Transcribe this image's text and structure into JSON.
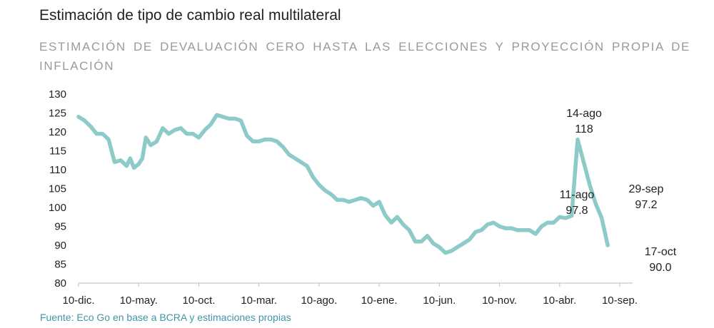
{
  "header": {
    "title": "Estimación de tipo de cambio real multilateral",
    "subtitle": "ESTIMACIÓN DE DEVALUACIÓN CERO HASTA LAS ELECCIONES Y PROYECCIÓN PROPIA DE INFLACIÓN"
  },
  "footer": {
    "source": "Fuente: Eco Go en base a BCRA y estimaciones propias"
  },
  "chart_data": {
    "type": "line",
    "title": "Estimación de tipo de cambio real multilateral",
    "subtitle": "ESTIMACIÓN DE DEVALUACIÓN CERO HASTA LAS ELECCIONES Y PROYECCIÓN PROPIA DE INFLACIÓN",
    "xlabel": "",
    "ylabel": "",
    "ylim": [
      80,
      130
    ],
    "yticks": [
      80,
      85,
      90,
      95,
      100,
      105,
      110,
      115,
      120,
      125,
      130
    ],
    "x_tick_labels": [
      "10-dic.",
      "10-may.",
      "10-oct.",
      "10-mar.",
      "10-ago.",
      "10-ene.",
      "10-jun.",
      "10-nov.",
      "10-abr.",
      "10-sep."
    ],
    "x_units": "months since 10-dic.",
    "x_tick_positions": [
      0,
      5,
      10,
      15,
      20,
      25,
      30,
      35,
      40,
      45
    ],
    "xlim": [
      0,
      45
    ],
    "grid": false,
    "legend": "none",
    "line_color": "#8ccbc7",
    "series": [
      {
        "name": "Tipo de cambio real multilateral",
        "x": [
          0,
          0.5,
          1,
          1.5,
          2,
          2.5,
          3,
          3.5,
          4,
          4.3,
          4.6,
          5,
          5.3,
          5.6,
          6,
          6.5,
          7,
          7.5,
          8,
          8.5,
          9,
          9.5,
          10,
          10.5,
          11,
          11.5,
          12,
          12.5,
          13,
          13.5,
          14,
          14.5,
          15,
          15.5,
          16,
          16.5,
          17,
          17.5,
          18,
          18.5,
          19,
          19.5,
          20,
          20.5,
          21,
          21.5,
          22,
          22.5,
          23,
          23.5,
          24,
          24.5,
          25,
          25.5,
          26,
          26.5,
          27,
          27.5,
          28,
          28.5,
          29,
          29.5,
          30,
          30.5,
          31,
          31.5,
          32,
          32.5,
          33,
          33.5,
          34,
          34.5,
          35,
          35.5,
          36,
          36.5,
          37,
          37.5,
          38,
          38.5,
          39,
          39.5,
          40,
          40.5,
          41,
          41.5,
          42,
          42.5,
          43,
          43.5,
          44
        ],
        "values": [
          124,
          123,
          121.5,
          119.5,
          119.5,
          118,
          112,
          112.5,
          111,
          113,
          110.5,
          111.5,
          113,
          118.5,
          116.5,
          117.5,
          121,
          119.5,
          120.5,
          121,
          119.5,
          119.5,
          118.5,
          120.5,
          122,
          124.5,
          124,
          123.5,
          123.5,
          123,
          119,
          117.5,
          117.5,
          118,
          118,
          117.5,
          116,
          114,
          113,
          112,
          111,
          108,
          106,
          104.5,
          103.5,
          102,
          102,
          101.5,
          102,
          102.5,
          102,
          100.5,
          101.5,
          98,
          96,
          97.5,
          95.5,
          94,
          91,
          91,
          92.5,
          90.5,
          89.5,
          88,
          88.5,
          89.5,
          90.5,
          91.5,
          93.5,
          94,
          95.5,
          96,
          95,
          94.5,
          94.5,
          94,
          94,
          94,
          93,
          95,
          96,
          96,
          97.5,
          97.2,
          97.8,
          118,
          112,
          106,
          101,
          97.2,
          90
        ]
      }
    ],
    "annotations": [
      {
        "date": "14-ago",
        "value": "118",
        "at_x": 41.5,
        "at_y": 118
      },
      {
        "date": "11-ago",
        "value": "97.8",
        "at_x": 41,
        "at_y": 97.8
      },
      {
        "date": "29-sep",
        "value": "97.2",
        "at_x": 43.5,
        "at_y": 97.2
      },
      {
        "date": "17-oct",
        "value": "90.0",
        "at_x": 44,
        "at_y": 90
      }
    ]
  }
}
